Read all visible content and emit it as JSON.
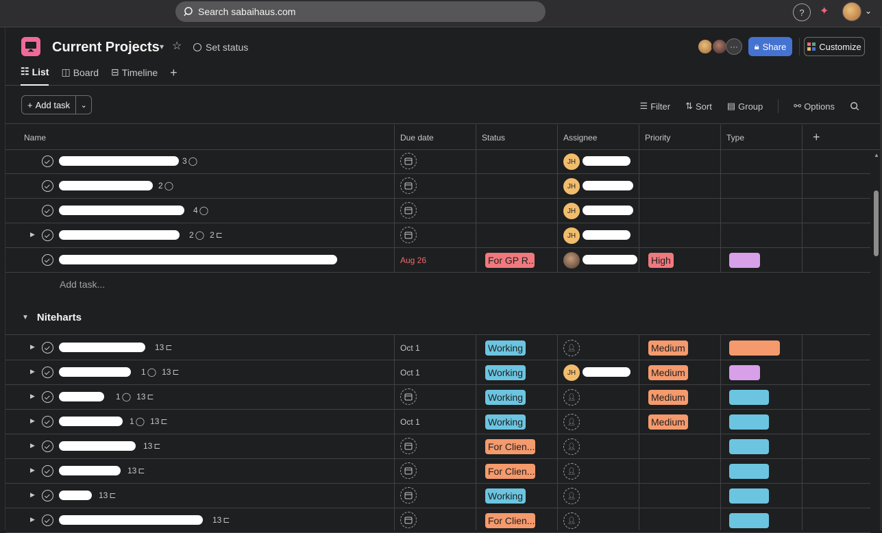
{
  "topbar": {
    "search_placeholder": "Search sabaihaus.com",
    "help_label": "?"
  },
  "project": {
    "title": "Current Projects",
    "set_status": "Set status",
    "tabs": [
      {
        "label": "List",
        "active": true
      },
      {
        "label": "Board",
        "active": false
      },
      {
        "label": "Timeline",
        "active": false
      }
    ],
    "share_label": "Share",
    "customize_label": "Customize"
  },
  "toolbar": {
    "add_task": "Add task",
    "filter": "Filter",
    "sort": "Sort",
    "group": "Group",
    "options": "Options"
  },
  "columns": [
    "Name",
    "Due date",
    "Status",
    "Assignee",
    "Priority",
    "Type"
  ],
  "rows_top": [
    {
      "comments": "3",
      "subtasks": "",
      "due": "",
      "status": "",
      "assignee": "JH",
      "priority": "",
      "type": ""
    },
    {
      "comments": "2",
      "subtasks": "",
      "due": "",
      "status": "",
      "assignee": "JH",
      "priority": "",
      "type": ""
    },
    {
      "comments": "4",
      "subtasks": "",
      "due": "",
      "status": "",
      "assignee": "JH",
      "priority": "",
      "type": ""
    },
    {
      "comments": "2",
      "subtasks": "2",
      "due": "",
      "status": "",
      "assignee": "JH",
      "priority": "",
      "type": ""
    },
    {
      "comments": "",
      "subtasks": "",
      "due": "Aug 26",
      "status": "For GP R...",
      "assignee": "",
      "priority": "High",
      "type": ""
    }
  ],
  "add_task_inline": "Add task...",
  "section_name": "Niteharts",
  "rows_section": [
    {
      "comments": "",
      "subtasks": "13",
      "due": "Oct 1",
      "status": "Working",
      "assignee": "",
      "priority": "Medium"
    },
    {
      "comments": "1",
      "subtasks": "13",
      "due": "Oct 1",
      "status": "Working",
      "assignee": "JH",
      "priority": "Medium"
    },
    {
      "comments": "1",
      "subtasks": "13",
      "due": "",
      "status": "Working",
      "assignee": "",
      "priority": "Medium"
    },
    {
      "comments": "1",
      "subtasks": "13",
      "due": "Oct 1",
      "status": "Working",
      "assignee": "",
      "priority": "Medium"
    },
    {
      "comments": "",
      "subtasks": "13",
      "due": "",
      "status": "For Clien...",
      "assignee": "",
      "priority": ""
    },
    {
      "comments": "",
      "subtasks": "13",
      "due": "",
      "status": "For Clien...",
      "assignee": "",
      "priority": ""
    },
    {
      "comments": "",
      "subtasks": "13",
      "due": "",
      "status": "Working",
      "assignee": "",
      "priority": ""
    },
    {
      "comments": "",
      "subtasks": "13",
      "due": "",
      "status": "For Clien...",
      "assignee": "",
      "priority": ""
    }
  ],
  "colors": {
    "working": "#6cc5e0",
    "for_client": "#f59a6c",
    "for_gp": "#f0797d",
    "medium": "#f59a6c",
    "high": "#f0797d",
    "accent": "#4573d2",
    "type_purple": "#d7a0e8",
    "type_blue": "#6cc5e0",
    "type_orange": "#f59a6c"
  }
}
